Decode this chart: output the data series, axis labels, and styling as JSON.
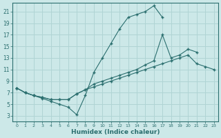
{
  "xlabel": "Humidex (Indice chaleur)",
  "bg_color": "#cce8e8",
  "grid_color": "#b0d4d4",
  "line_color": "#2a6e6e",
  "xlim": [
    -0.5,
    23.5
  ],
  "ylim": [
    2,
    22.5
  ],
  "xticks": [
    0,
    1,
    2,
    3,
    4,
    5,
    6,
    7,
    8,
    9,
    10,
    11,
    12,
    13,
    14,
    15,
    16,
    17,
    18,
    19,
    20,
    21,
    22,
    23
  ],
  "yticks": [
    3,
    5,
    7,
    9,
    11,
    13,
    15,
    17,
    19,
    21
  ],
  "line1_x": [
    0,
    1,
    2,
    3,
    4,
    5,
    6,
    7,
    8,
    9,
    10,
    11,
    12,
    13,
    14,
    15,
    16,
    17
  ],
  "line1_y": [
    7.8,
    7.0,
    6.5,
    6.0,
    5.5,
    5.0,
    4.5,
    3.2,
    6.5,
    10.5,
    13.0,
    15.5,
    18.0,
    20.0,
    20.5,
    21.0,
    22.0,
    20.0
  ],
  "line2_x": [
    0,
    1,
    2,
    3,
    4,
    5,
    6,
    7,
    8,
    9,
    10,
    11,
    12,
    13,
    14,
    15,
    16,
    17,
    18,
    19,
    20,
    21
  ],
  "line2_y": [
    7.8,
    7.0,
    6.5,
    6.2,
    5.8,
    5.8,
    5.8,
    6.8,
    7.5,
    8.5,
    9.0,
    9.5,
    10.0,
    10.5,
    11.0,
    11.8,
    12.5,
    17.0,
    13.0,
    13.5,
    14.5,
    14.0
  ],
  "line3_x": [
    0,
    1,
    2,
    3,
    4,
    5,
    6,
    7,
    8,
    9,
    10,
    11,
    12,
    13,
    14,
    15,
    16,
    17,
    18,
    19,
    20,
    21,
    22,
    23
  ],
  "line3_y": [
    7.8,
    7.0,
    6.5,
    6.2,
    5.8,
    5.8,
    5.8,
    6.8,
    7.5,
    8.0,
    8.5,
    9.0,
    9.5,
    10.0,
    10.5,
    11.0,
    11.5,
    12.0,
    12.5,
    13.0,
    13.5,
    12.0,
    11.5,
    11.0
  ]
}
